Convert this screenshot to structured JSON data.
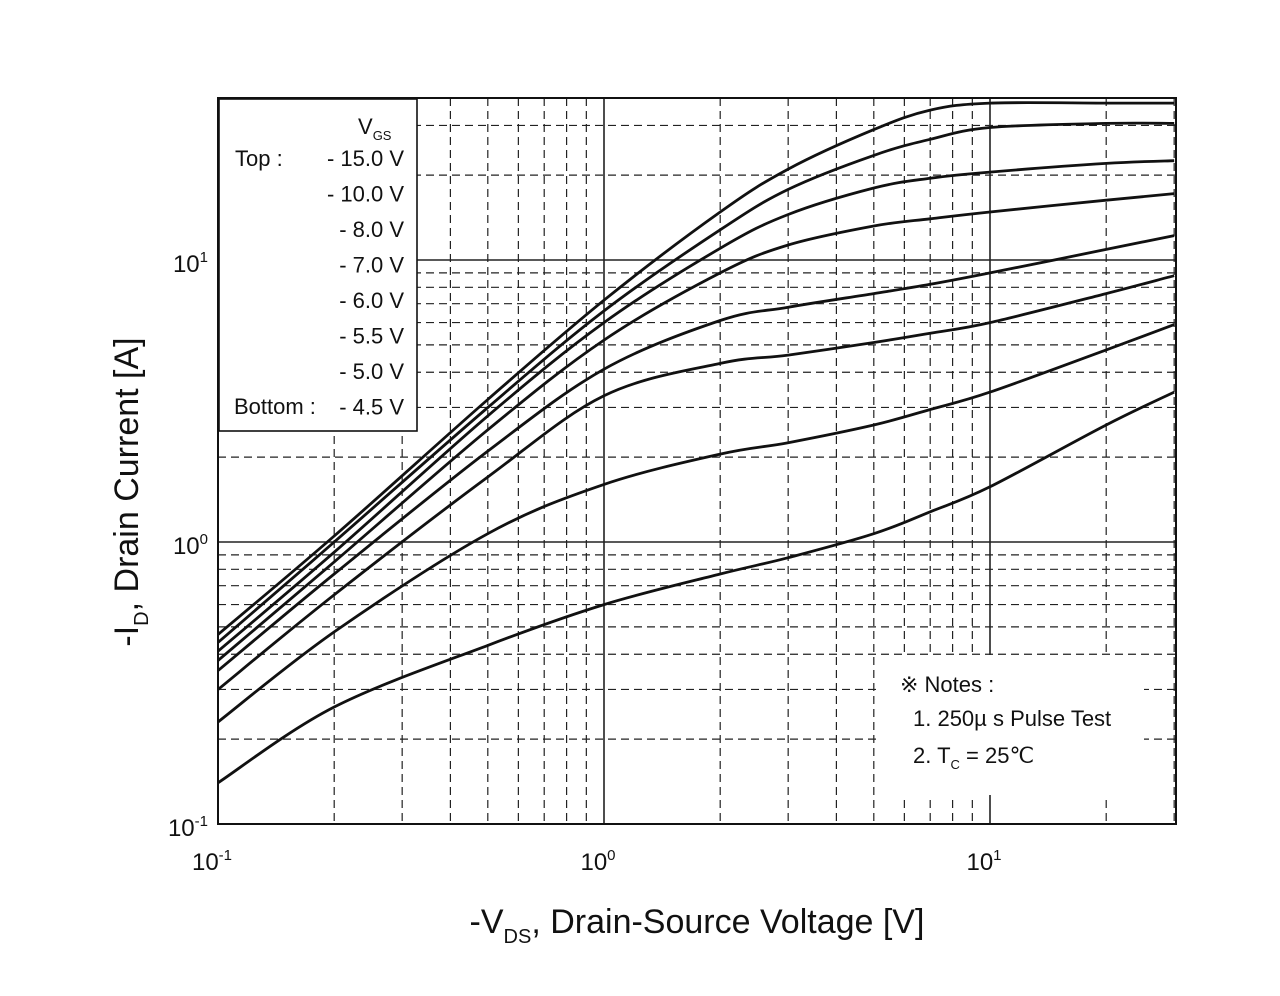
{
  "chart_data": {
    "type": "line",
    "title": "",
    "xlabel": {
      "prefix": "-V",
      "sub": "DS",
      "suffix": ", Drain-Source Voltage [V]"
    },
    "ylabel": {
      "prefix": "-I",
      "sub": "D",
      "suffix": ", Drain Current [A]"
    },
    "xscale": "log",
    "yscale": "log",
    "xlim": [
      0.1,
      30
    ],
    "ylim": [
      0.1,
      35
    ],
    "grid": true,
    "x_ticks": [
      {
        "value": 0.1,
        "base": "10",
        "exp": "-1"
      },
      {
        "value": 1,
        "base": "10",
        "exp": "0"
      },
      {
        "value": 10,
        "base": "10",
        "exp": "1"
      }
    ],
    "y_ticks": [
      {
        "value": 0.1,
        "base": "10",
        "exp": "-1"
      },
      {
        "value": 1,
        "base": "10",
        "exp": "0"
      },
      {
        "value": 10,
        "base": "10",
        "exp": "1"
      }
    ],
    "series": [
      {
        "name": "- 15.0 V",
        "x": [
          0.1,
          0.2,
          0.5,
          1,
          2,
          3,
          5,
          7,
          10,
          20,
          30
        ],
        "y": [
          0.47,
          1.05,
          3.2,
          7.2,
          14.8,
          21,
          29,
          34,
          36,
          36,
          36
        ]
      },
      {
        "name": "- 10.0 V",
        "x": [
          0.1,
          0.2,
          0.5,
          1,
          2,
          3,
          5,
          7,
          10,
          20,
          30
        ],
        "y": [
          0.44,
          1.0,
          3.0,
          6.6,
          12.8,
          17.8,
          23.5,
          26.8,
          29.5,
          30.5,
          30.5
        ]
      },
      {
        "name": "- 8.0 V",
        "x": [
          0.1,
          0.2,
          0.5,
          1,
          2,
          3,
          5,
          7,
          10,
          20,
          30
        ],
        "y": [
          0.41,
          0.92,
          2.8,
          6.0,
          11.0,
          14.5,
          18.0,
          19.5,
          20.5,
          22.0,
          22.5
        ]
      },
      {
        "name": "- 7.0 V",
        "x": [
          0.1,
          0.2,
          0.5,
          1,
          2,
          3,
          5,
          7,
          10,
          20,
          30
        ],
        "y": [
          0.38,
          0.85,
          2.5,
          5.2,
          9.0,
          11.3,
          13.2,
          14.0,
          14.8,
          16.3,
          17.2
        ]
      },
      {
        "name": "- 6.0 V",
        "x": [
          0.1,
          0.2,
          0.5,
          1,
          2,
          3,
          5,
          7,
          10,
          20,
          30
        ],
        "y": [
          0.35,
          0.77,
          2.1,
          4.1,
          6.1,
          6.8,
          7.6,
          8.2,
          9.0,
          10.9,
          12.2
        ]
      },
      {
        "name": "- 5.5 V",
        "x": [
          0.1,
          0.2,
          0.5,
          1,
          2,
          3,
          5,
          7,
          10,
          20,
          30
        ],
        "y": [
          0.3,
          0.65,
          1.7,
          3.3,
          4.3,
          4.6,
          5.1,
          5.5,
          6.0,
          7.6,
          8.8
        ]
      },
      {
        "name": "- 5.0 V",
        "x": [
          0.1,
          0.2,
          0.5,
          1,
          2,
          3,
          5,
          7,
          10,
          20,
          30
        ],
        "y": [
          0.23,
          0.48,
          1.07,
          1.6,
          2.05,
          2.25,
          2.6,
          2.95,
          3.4,
          4.8,
          5.9
        ]
      },
      {
        "name": "- 4.5 V",
        "x": [
          0.1,
          0.2,
          0.5,
          1,
          2,
          3,
          5,
          7,
          10,
          20,
          30
        ],
        "y": [
          0.14,
          0.26,
          0.43,
          0.6,
          0.77,
          0.88,
          1.07,
          1.28,
          1.57,
          2.6,
          3.4
        ]
      }
    ]
  },
  "legend": {
    "header_prefix": "V",
    "header_sub": "GS",
    "top_label": "Top :",
    "bottom_label": "Bottom :",
    "entries": [
      "- 15.0 V",
      "- 10.0 V",
      "- 8.0 V",
      "- 7.0 V",
      "- 6.0 V",
      "- 5.5 V",
      "- 5.0 V",
      "- 4.5 V"
    ]
  },
  "notes": {
    "title": "※ Notes :",
    "line1": "1. 250µ s Pulse Test",
    "line2_prefix": "2. T",
    "line2_sub": "C",
    "line2_suffix": " = 25℃"
  }
}
